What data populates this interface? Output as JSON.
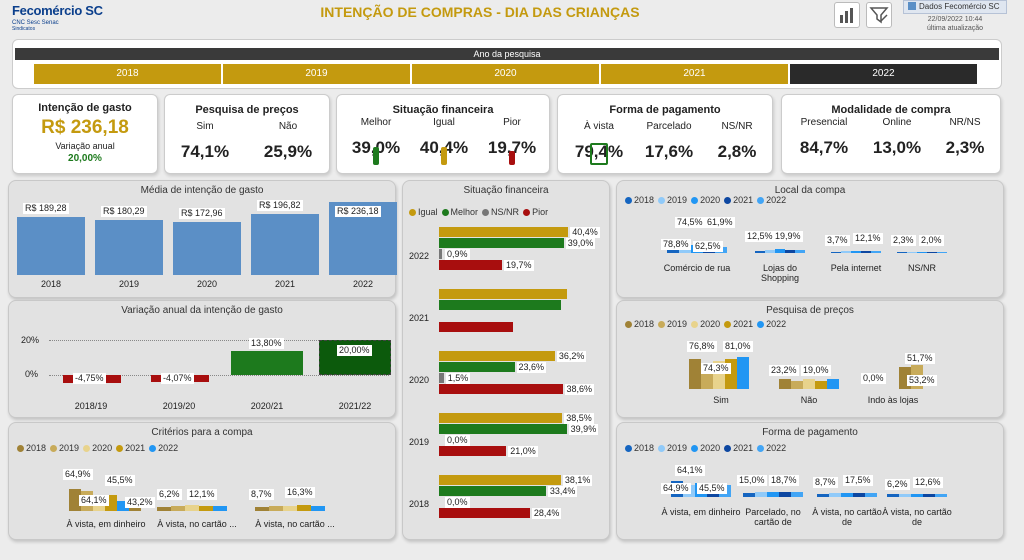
{
  "header": {
    "logo_text": "Fecomércio SC",
    "logo_sub": "CNC Sesc Senac",
    "logo_sub2": "Sindicatos",
    "title": "INTENÇÃO DE COMPRAS - DIA DAS CRIANÇAS",
    "data_source": "Dados Fecomércio SC",
    "update_date": "22/09/2022 10:44",
    "update_label": "última atualização"
  },
  "year_filter": {
    "label": "Ano da pesquisa",
    "years": [
      "2018",
      "2019",
      "2020",
      "2021",
      "2022"
    ],
    "selected": "2022"
  },
  "kpis": {
    "intencao": {
      "title": "Intenção de gasto",
      "value": "R$ 236,18",
      "var_label": "Variação anual",
      "var_value": "20,00%"
    },
    "pesquisa": {
      "title": "Pesquisa de preços",
      "cols": [
        {
          "label": "Sim",
          "value": "74,1%"
        },
        {
          "label": "Não",
          "value": "25,9%"
        }
      ]
    },
    "situacao": {
      "title": "Situação financeira",
      "cols": [
        {
          "label": "Melhor",
          "value": "39,0%"
        },
        {
          "label": "Igual",
          "value": "40,4%"
        },
        {
          "label": "Pior",
          "value": "19,7%"
        }
      ]
    },
    "forma": {
      "title": "Forma de pagamento",
      "cols": [
        {
          "label": "À vista",
          "value": "79,4%"
        },
        {
          "label": "Parcelado",
          "value": "17,6%"
        },
        {
          "label": "NS/NR",
          "value": "2,8%"
        }
      ]
    },
    "modalidade": {
      "title": "Modalidade de compra",
      "cols": [
        {
          "label": "Presencial",
          "value": "84,7%"
        },
        {
          "label": "Online",
          "value": "13,0%"
        },
        {
          "label": "NR/NS",
          "value": "2,3%"
        }
      ]
    }
  },
  "colors": {
    "gold": "#c49a0f",
    "blue": "#5b8fc6",
    "green": "#1d7a1d",
    "darkred": "#a80e0e",
    "lightblue": "#2196f3"
  },
  "chart_data": [
    {
      "id": "media",
      "type": "bar",
      "title": "Média de intenção de gasto",
      "categories": [
        "2018",
        "2019",
        "2020",
        "2021",
        "2022"
      ],
      "values": [
        189.28,
        180.29,
        172.96,
        196.82,
        236.18
      ],
      "labels": [
        "R$ 189,28",
        "R$ 180,29",
        "R$ 172,96",
        "R$ 196,82",
        "R$ 236,18"
      ]
    },
    {
      "id": "variacao",
      "type": "bar",
      "title": "Variação anual da intenção de gasto",
      "categories": [
        "2018/19",
        "2019/20",
        "2020/21",
        "2021/22"
      ],
      "values": [
        -4.75,
        -4.07,
        13.8,
        20.0
      ],
      "labels": [
        "-4,75%",
        "-4,07%",
        "13,80%",
        "20,00%"
      ],
      "yticks": [
        "20%",
        "0%"
      ]
    },
    {
      "id": "situacao",
      "type": "bar",
      "title": "Situação financeira",
      "legend": [
        "Igual",
        "Melhor",
        "NS/NR",
        "Pior"
      ],
      "years": [
        {
          "year": "2022",
          "igual": 40.4,
          "melhor": 39.0,
          "nsnr": 0.9,
          "pior": 19.7,
          "labels": [
            "40,4%",
            "39,0%",
            "0,9%",
            "19,7%"
          ]
        },
        {
          "year": "2021",
          "igual": 40.0,
          "melhor": 38.0,
          "nsnr": 0,
          "pior": 23.0,
          "labels": [
            "",
            "",
            "",
            ""
          ]
        },
        {
          "year": "2020",
          "igual": 36.2,
          "melhor": 23.6,
          "nsnr": 1.5,
          "pior": 38.6,
          "labels": [
            "36,2%",
            "23,6%",
            "1,5%",
            "38,6%"
          ]
        },
        {
          "year": "2019",
          "igual": 38.5,
          "melhor": 39.9,
          "nsnr": 0.0,
          "pior": 21.0,
          "labels": [
            "38,5%",
            "39,9%",
            "0,0%",
            "21,0%"
          ]
        },
        {
          "year": "2018",
          "igual": 38.1,
          "melhor": 33.4,
          "nsnr": 0.0,
          "pior": 28.4,
          "labels": [
            "38,1%",
            "33,4%",
            "0,0%",
            "28,4%"
          ]
        }
      ]
    },
    {
      "id": "local",
      "type": "bar",
      "title": "Local da compa",
      "legend": [
        "2018",
        "2019",
        "2020",
        "2021",
        "2022"
      ],
      "categories": [
        "Comércio de rua",
        "Lojas do Shopping",
        "Pela internet",
        "NS/NR"
      ],
      "labels": [
        [
          "78,8%",
          "74,5%",
          "61,9%",
          "62,5%"
        ],
        [
          "12,5%",
          "19,9%"
        ],
        [
          "3,7%",
          "12,1%"
        ],
        [
          "2,3%",
          "2,0%"
        ]
      ]
    },
    {
      "id": "pesquisa",
      "type": "bar",
      "title": "Pesquisa de preços",
      "legend": [
        "2018",
        "2019",
        "2020",
        "2021",
        "2022"
      ],
      "categories": [
        "Sim",
        "Não",
        "Indo às lojas"
      ],
      "labels": [
        [
          "76,8%",
          "74,3%",
          "81,0%"
        ],
        [
          "23,2%",
          "19,0%"
        ],
        [
          "0,0%",
          "51,7%",
          "53,2%"
        ]
      ]
    },
    {
      "id": "criterios",
      "type": "bar",
      "title": "Critérios para a compa",
      "legend": [
        "2018",
        "2019",
        "2020",
        "2021",
        "2022"
      ],
      "categories": [
        "À vista, em dinheiro",
        "À vista, no cartão ...",
        "À vista, no cartão ..."
      ],
      "labels": [
        [
          "64,9%",
          "64,1%",
          "45,5%",
          "43,2%"
        ],
        [
          "6,2%",
          "12,1%"
        ],
        [
          "8,7%",
          "16,3%"
        ]
      ]
    },
    {
      "id": "forma",
      "type": "bar",
      "title": "Forma de pagamento",
      "legend": [
        "2018",
        "2019",
        "2020",
        "2021",
        "2022"
      ],
      "categories": [
        "À vista, em dinheiro",
        "Parcelado, no cartão de",
        "À vista, no cartão de",
        "À vista, no cartão de"
      ],
      "labels": [
        [
          "64,1%",
          "64,9%",
          "45,5%"
        ],
        [
          "15,0%",
          "18,7%"
        ],
        [
          "8,7%",
          "17,5%"
        ],
        [
          "6,2%",
          "12,6%"
        ]
      ]
    }
  ]
}
